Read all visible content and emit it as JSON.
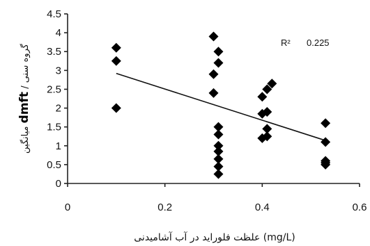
{
  "chart_data": {
    "type": "scatter",
    "xlabel": "علظت فلوراید در آب آشامیدنی (mg/L)",
    "ylabel": {
      "part1": "میانگین ",
      "part2": "dmft",
      "part3": " / گروه سنی"
    },
    "xlim": [
      0,
      0.6
    ],
    "ylim": [
      0,
      4.5
    ],
    "x_ticks": [
      "0",
      "0.2",
      "0.4",
      "0.6"
    ],
    "x_tick_values": [
      0,
      0.2,
      0.4,
      0.6
    ],
    "y_ticks": [
      "0",
      "0.5",
      "1",
      "1.5",
      "2",
      "2.5",
      "3",
      "3.5",
      "4",
      "4.5"
    ],
    "y_tick_values": [
      0,
      0.5,
      1,
      1.5,
      2,
      2.5,
      3,
      3.5,
      4,
      4.5
    ],
    "annotation": {
      "label": "R²",
      "value": "0.225"
    },
    "grid": false,
    "series": [
      {
        "points": [
          [
            0.1,
            3.6
          ],
          [
            0.1,
            3.25
          ],
          [
            0.1,
            2.0
          ],
          [
            0.3,
            3.9
          ],
          [
            0.31,
            3.5
          ],
          [
            0.31,
            3.2
          ],
          [
            0.3,
            2.9
          ],
          [
            0.3,
            2.4
          ],
          [
            0.31,
            1.5
          ],
          [
            0.31,
            1.3
          ],
          [
            0.31,
            1.0
          ],
          [
            0.31,
            0.85
          ],
          [
            0.31,
            0.65
          ],
          [
            0.31,
            0.45
          ],
          [
            0.31,
            0.25
          ],
          [
            0.42,
            2.65
          ],
          [
            0.41,
            2.5
          ],
          [
            0.4,
            2.3
          ],
          [
            0.41,
            1.9
          ],
          [
            0.4,
            1.85
          ],
          [
            0.41,
            1.45
          ],
          [
            0.41,
            1.25
          ],
          [
            0.4,
            1.2
          ],
          [
            0.53,
            1.6
          ],
          [
            0.53,
            1.1
          ],
          [
            0.53,
            0.6
          ],
          [
            0.53,
            0.55
          ],
          [
            0.53,
            0.5
          ]
        ]
      }
    ],
    "trendline": {
      "x": [
        0.1,
        0.53
      ],
      "y": [
        2.92,
        1.14
      ]
    }
  }
}
